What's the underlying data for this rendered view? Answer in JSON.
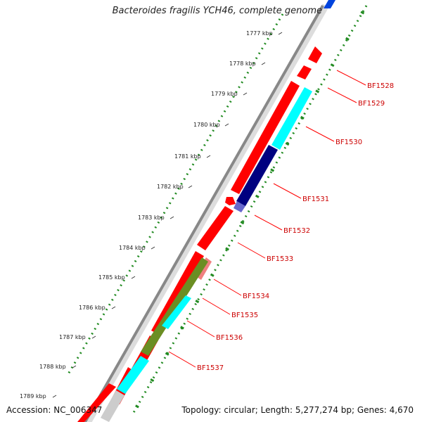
{
  "header": {
    "title": "Bacteroides fragilis YCH46, complete genome"
  },
  "footer": {
    "accession": "Accession: NC_006347",
    "summary": "Topology: circular; Length: 5,277,274 bp; Genes: 4,670"
  },
  "scale": {
    "unit": "kbp",
    "ticks": [
      "1777 kbp",
      "1778 kbp",
      "1779 kbp",
      "1780 kbp",
      "1781 kbp",
      "1782 kbp",
      "1783 kbp",
      "1784 kbp",
      "1785 kbp",
      "1786 kbp",
      "1787 kbp",
      "1788 kbp",
      "1789 kbp"
    ]
  },
  "genes": [
    {
      "label": "BF1528",
      "color": "#ff0000"
    },
    {
      "label": "BF1529",
      "color": "#ff0000"
    },
    {
      "label": "BF1530",
      "color": "#00ffff"
    },
    {
      "label": "BF1531",
      "color": "#000080"
    },
    {
      "label": "BF1532",
      "color": "#ff0000"
    },
    {
      "label": "BF1533",
      "color": "#ff0000"
    },
    {
      "label": "BF1534",
      "color": "#f08080"
    },
    {
      "label": "BF1535",
      "color": "#6b8e23"
    },
    {
      "label": "BF1536",
      "color": "#00ffff"
    },
    {
      "label": "BF1537",
      "color": "#ff0000"
    }
  ],
  "colors": {
    "label": "#cc0000",
    "label_line": "#ff0000",
    "backbone": "#888888",
    "tick_green": "#228b22"
  }
}
